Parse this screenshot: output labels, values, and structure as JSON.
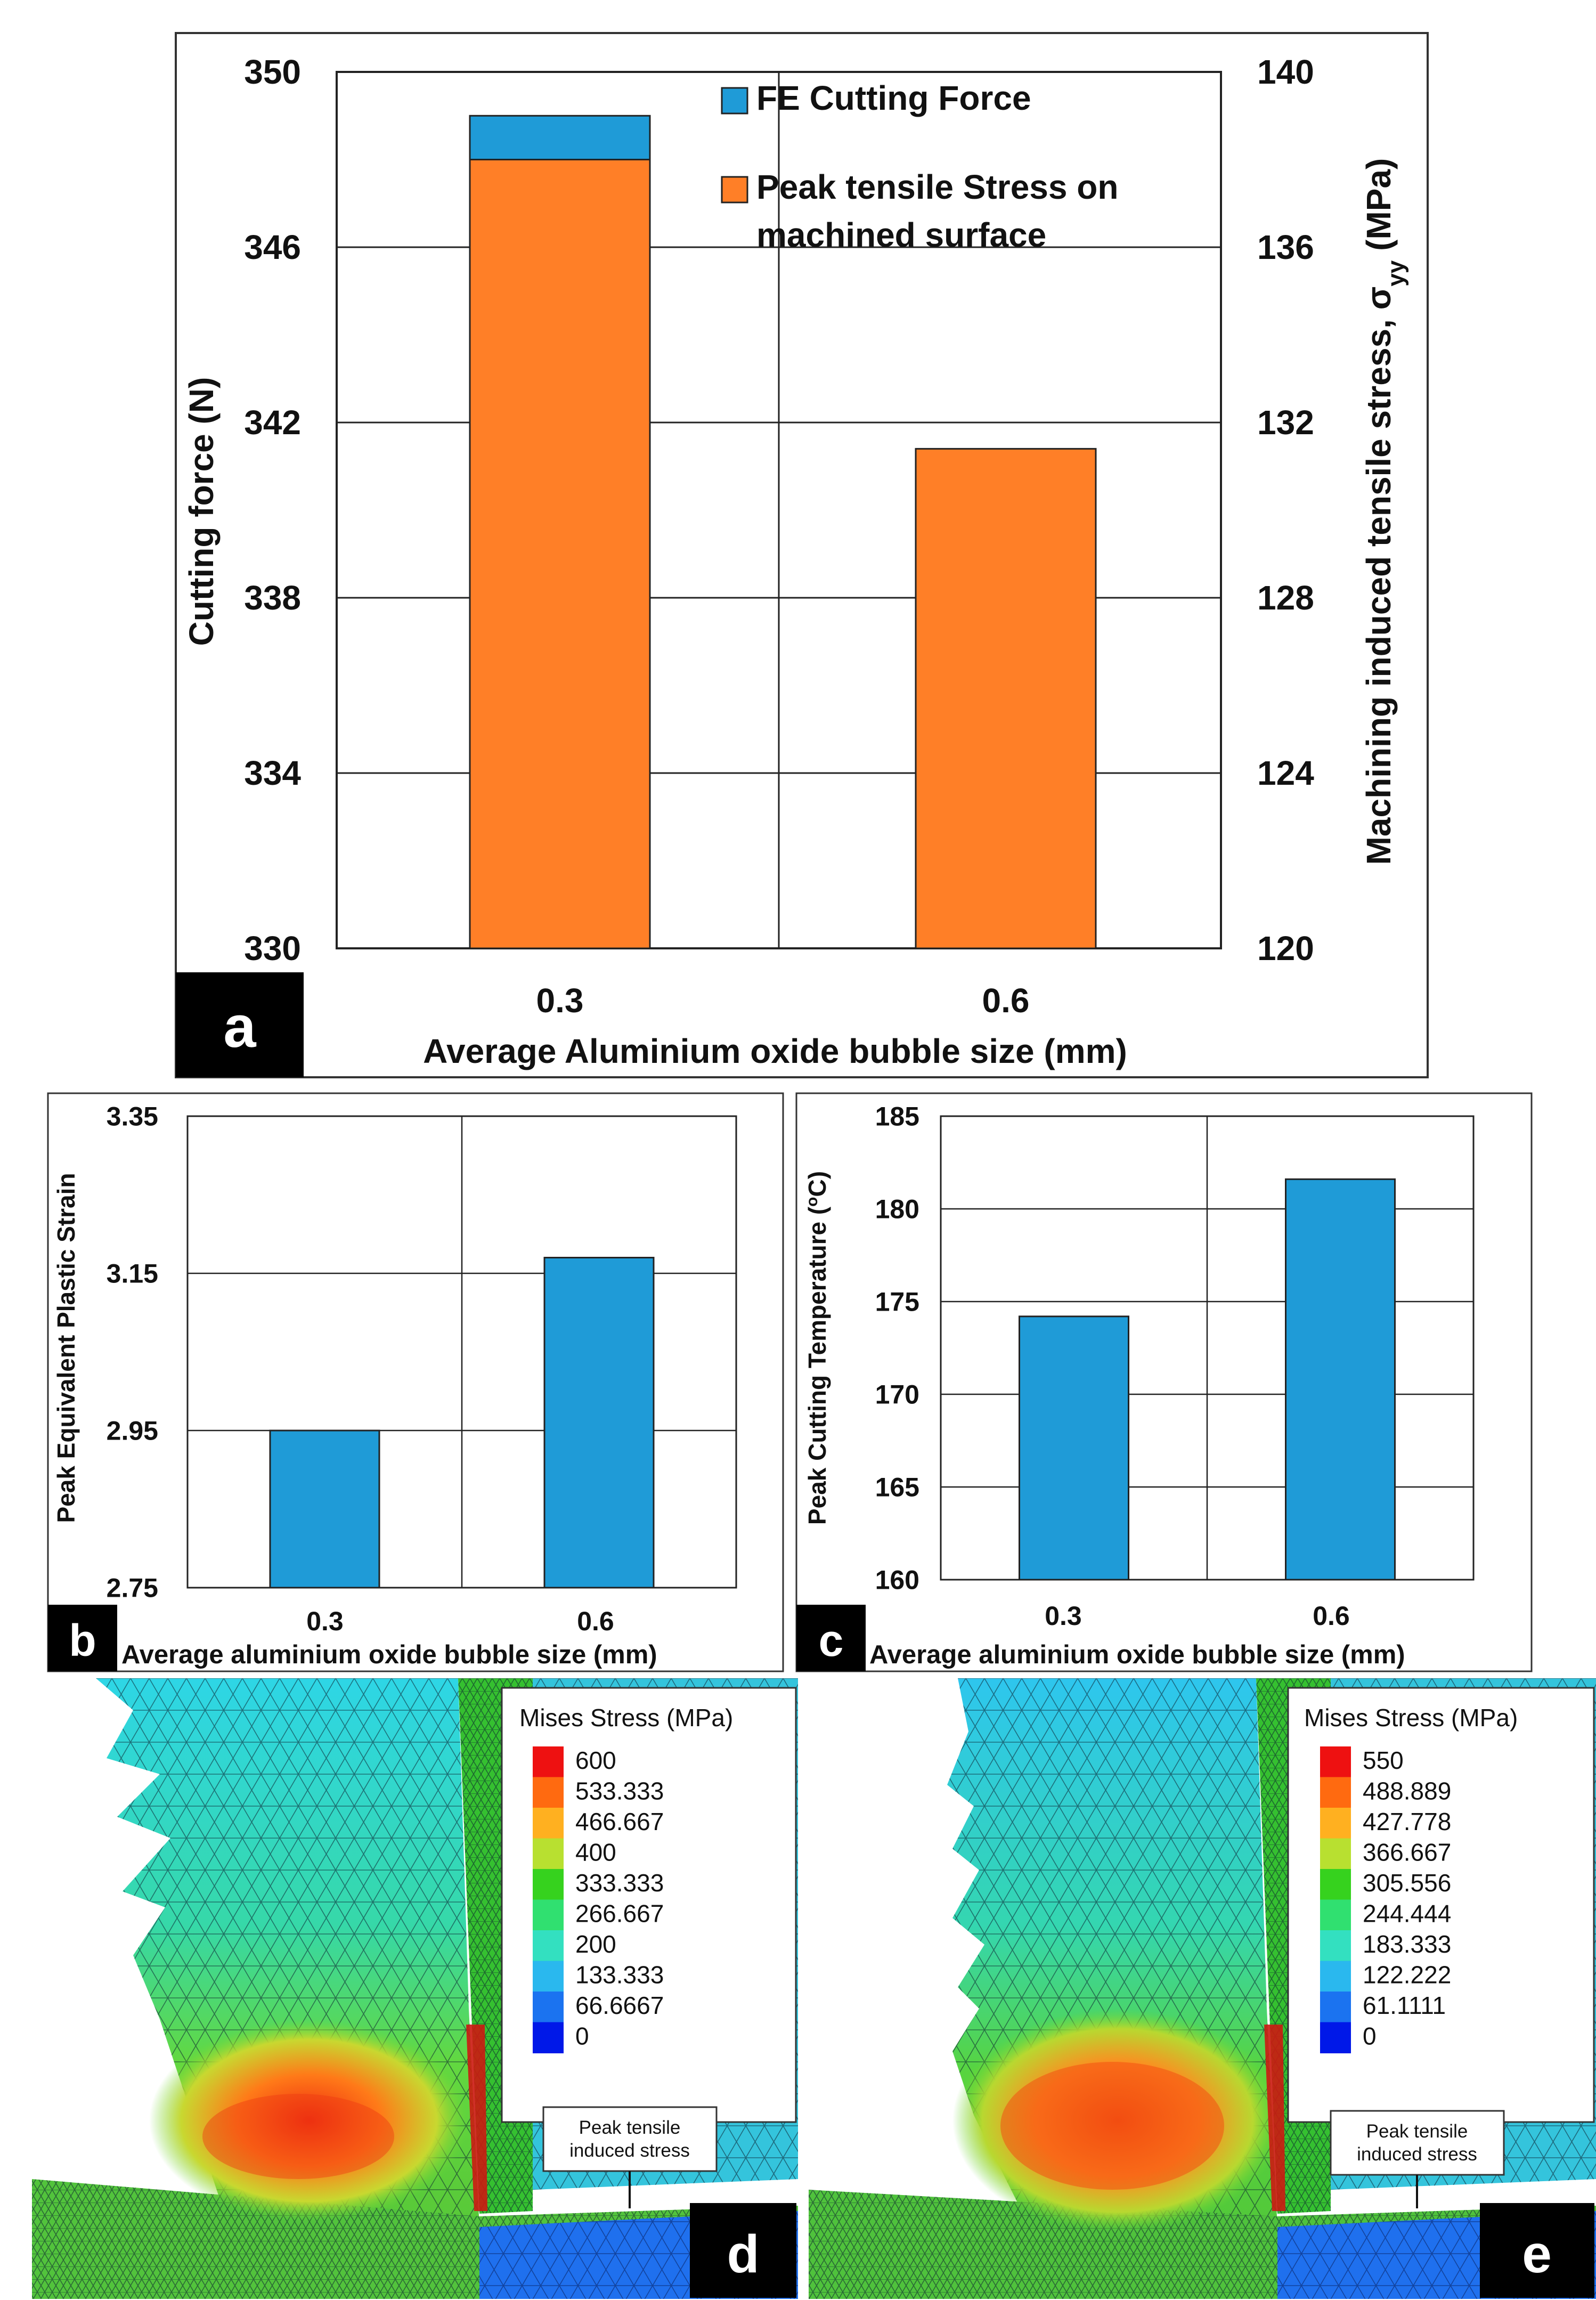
{
  "chart_data": [
    {
      "panel": "a",
      "type": "bar",
      "categories": [
        "0.3",
        "0.6"
      ],
      "series": [
        {
          "name": "FE Cutting Force",
          "axis": "left",
          "values": [
            349.0,
            null
          ],
          "color": "#1f9bd7"
        },
        {
          "name": "Peak tensile Stress on machined surface",
          "axis": "right",
          "values": [
            138.0,
            131.4
          ],
          "color": "#ff7f27"
        }
      ],
      "legend_lines": [
        [
          "FE Cutting Force"
        ],
        [
          "Peak tensile Stress on",
          "machined surface"
        ]
      ],
      "xlabel": "Average Aluminium oxide bubble size (mm)",
      "ylabel": "Cutting force (N)",
      "ylabel_right": "Machining induced tensile stress, σ",
      "ylabel_right_sub": "yy",
      "ylabel_right_unit": " (MPa)",
      "ylim": [
        330,
        350
      ],
      "yticks": [
        "330",
        "334",
        "338",
        "342",
        "346",
        "350"
      ],
      "ylim_right": [
        120,
        140
      ],
      "yticks_right": [
        "120",
        "124",
        "128",
        "132",
        "136",
        "140"
      ],
      "grid": true
    },
    {
      "panel": "b",
      "type": "bar",
      "categories": [
        "0.3",
        "0.6"
      ],
      "values": [
        2.95,
        3.17
      ],
      "color": "#1f9bd7",
      "xlabel": "Average aluminium oxide bubble size (mm)",
      "ylabel": "Peak Equivalent Plastic Strain",
      "ylim": [
        2.75,
        3.35
      ],
      "yticks": [
        "2.75",
        "2.95",
        "3.15",
        "3.35"
      ],
      "grid": true
    },
    {
      "panel": "c",
      "type": "bar",
      "categories": [
        "0.3",
        "0.6"
      ],
      "values": [
        174.2,
        181.6
      ],
      "color": "#1f9bd7",
      "xlabel": "Average aluminium oxide bubble size (mm)",
      "ylabel": "Peak Cutting Temperature (",
      "ylabel_sup": "o",
      "ylabel_end": "C)",
      "ylim": [
        160,
        185
      ],
      "yticks": [
        "160",
        "165",
        "170",
        "175",
        "180",
        "185"
      ],
      "grid": true
    }
  ],
  "panel_labels": {
    "a": "a",
    "b": "b",
    "c": "c",
    "d": "d",
    "e": "e"
  },
  "fe_panels": [
    {
      "panel": "d",
      "legend_title": "Mises Stress (MPa)",
      "levels": [
        "600",
        "533.333",
        "466.667",
        "400",
        "333.333",
        "266.667",
        "200",
        "133.333",
        "66.6667",
        "0"
      ],
      "annotation": [
        "Peak tensile",
        "induced stress"
      ]
    },
    {
      "panel": "e",
      "legend_title": "Mises Stress (MPa)",
      "levels": [
        "550",
        "488.889",
        "427.778",
        "366.667",
        "305.556",
        "244.444",
        "183.333",
        "122.222",
        "61.1111",
        "0"
      ],
      "annotation": [
        "Peak tensile",
        "induced stress"
      ]
    }
  ],
  "contour_colors": [
    "#ee1111",
    "#ff6a10",
    "#ffb020",
    "#b8e030",
    "#36d21e",
    "#30e070",
    "#33e0c0",
    "#2ab8ee",
    "#1b73f0",
    "#0018e8"
  ]
}
